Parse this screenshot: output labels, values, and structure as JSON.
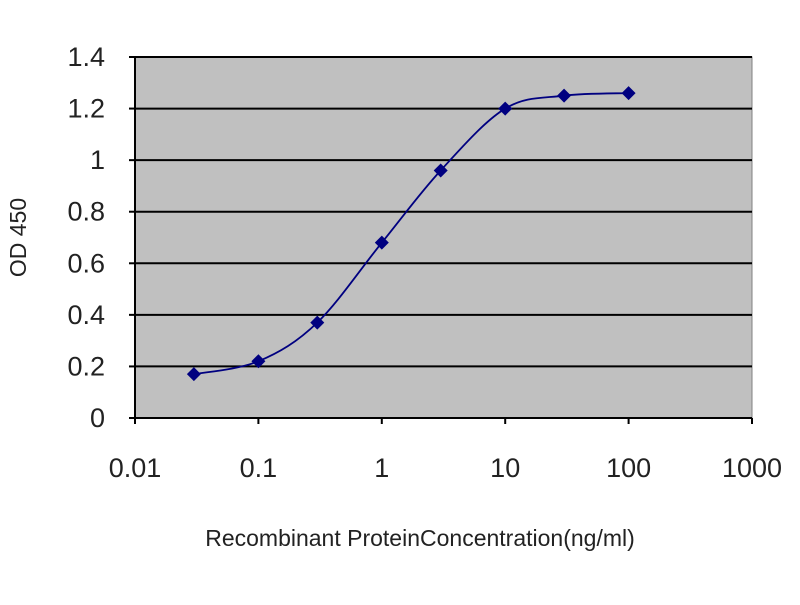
{
  "chart_data": {
    "type": "line",
    "xscale": "log",
    "xlabel": "Recombinant ProteinConcentration(ng/ml)",
    "ylabel": "OD 450",
    "xlim": [
      0.01,
      1000
    ],
    "ylim": [
      0,
      1.4
    ],
    "xticks": [
      "0.01",
      "0.1",
      "1",
      "10",
      "100",
      "1000"
    ],
    "xtick_values": [
      0.01,
      0.1,
      1,
      10,
      100,
      1000
    ],
    "yticks": [
      "0",
      "0.2",
      "0.4",
      "0.6",
      "0.8",
      "1",
      "1.2",
      "1.4"
    ],
    "ytick_values": [
      0,
      0.2,
      0.4,
      0.6,
      0.8,
      1,
      1.2,
      1.4
    ],
    "grid": "horizontal",
    "legend": "none",
    "series": [
      {
        "x": [
          0.03,
          0.1,
          0.3,
          1,
          3,
          10,
          30,
          100
        ],
        "y": [
          0.17,
          0.22,
          0.37,
          0.68,
          0.96,
          1.2,
          1.25,
          1.26
        ]
      }
    ],
    "colors": {
      "plot_background": "#c0c0c0",
      "gridline": "#000000",
      "line": "#000080"
    }
  }
}
